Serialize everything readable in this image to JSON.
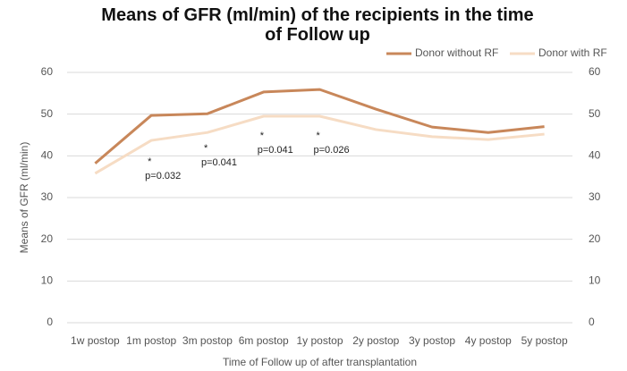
{
  "chart_data": {
    "type": "line",
    "title": "Means of GFR (ml/min) of the recipients in the time of Follow up",
    "x_label": "Time of Follow up of after transplantation",
    "y_label": "Means of GFR (ml/min)",
    "categories": [
      "1w postop",
      "1m postop",
      "3m postop",
      "6m postop",
      "1y postop",
      "2y postop",
      "3y postop",
      "4y postop",
      "5y postop"
    ],
    "series": [
      {
        "name": "Donor without RF",
        "color": "#c8875a",
        "values": [
          38.2,
          49.7,
          50.1,
          55.3,
          55.9,
          51.2,
          46.9,
          45.6,
          47.0
        ]
      },
      {
        "name": "Donor with RF",
        "color": "#f6dcc4",
        "values": [
          35.8,
          43.7,
          45.6,
          49.5,
          49.5,
          46.3,
          44.6,
          43.9,
          45.2
        ]
      }
    ],
    "ylim": [
      0,
      60
    ],
    "yticks": [
      0,
      10,
      20,
      30,
      40,
      50,
      60
    ],
    "y2lim": [
      0,
      60
    ],
    "y2ticks": [
      0,
      10,
      20,
      30,
      40,
      50,
      60
    ],
    "annotations": [
      {
        "mark": "*",
        "text": "p=0.032"
      },
      {
        "mark": "*",
        "text": "p=0.041"
      },
      {
        "mark": "*",
        "text": "p=0.041"
      },
      {
        "mark": "*",
        "text": "p=0.026"
      }
    ],
    "legend": "top-right"
  }
}
